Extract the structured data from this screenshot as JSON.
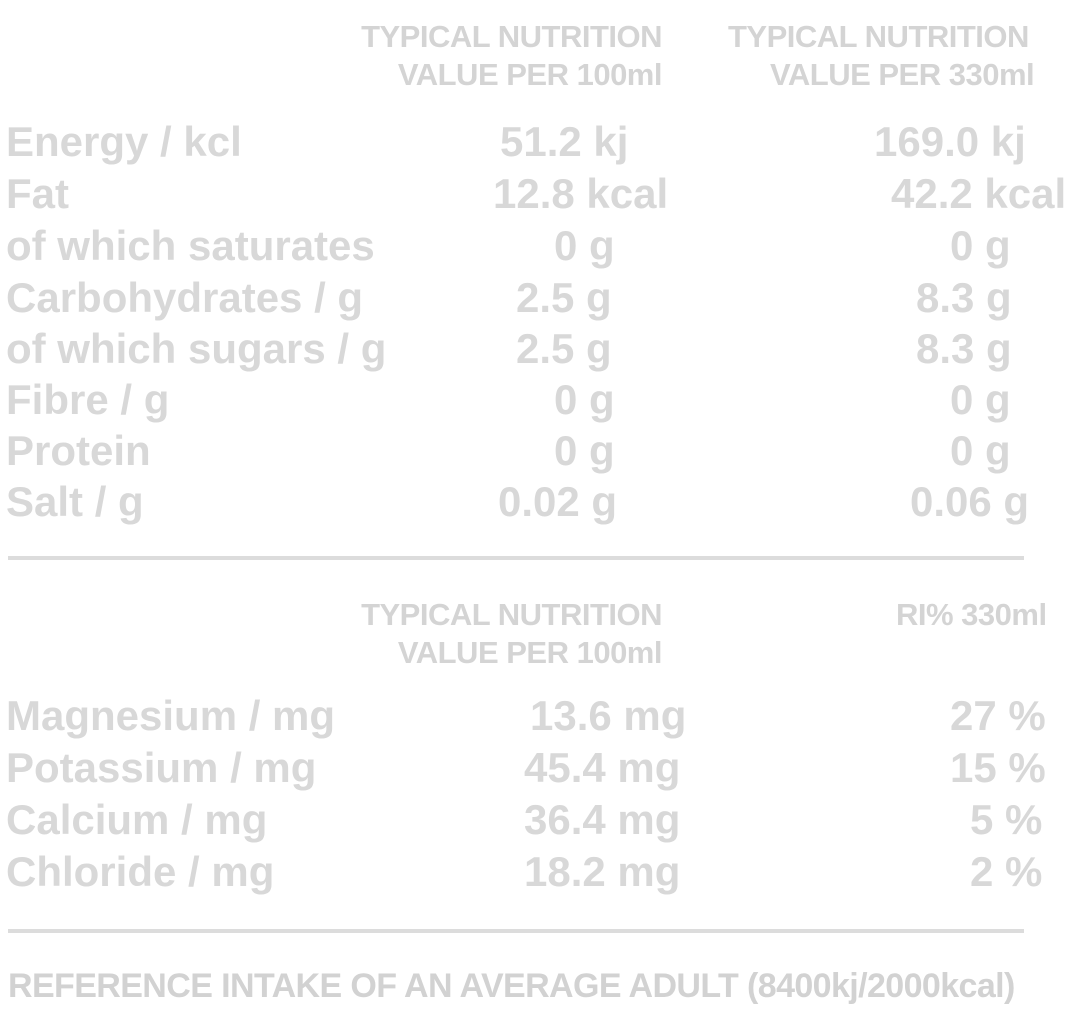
{
  "table1": {
    "header_col1_line1": "TYPICAL NUTRITION",
    "header_col1_line2": "VALUE PER 100ml",
    "header_col2_line1": "TYPICAL NUTRITION",
    "header_col2_line2": "VALUE PER 330ml",
    "rows": [
      {
        "label": "Energy / kcl",
        "per100": "51.2 kj",
        "per330": "169.0 kj"
      },
      {
        "label": "Fat",
        "per100": "12.8 kcal",
        "per330": "42.2 kcal"
      },
      {
        "label": "of  which saturates",
        "per100": "0 g",
        "per330": "0 g"
      },
      {
        "label": "Carbohydrates / g",
        "per100": "2.5 g",
        "per330": "8.3 g"
      },
      {
        "label": "of which sugars / g",
        "per100": "2.5 g",
        "per330": "8.3 g"
      },
      {
        "label": "Fibre  / g",
        "per100": "0 g",
        "per330": "0 g"
      },
      {
        "label": "Protein",
        "per100": "0 g",
        "per330": "0 g"
      },
      {
        "label": "Salt  / g",
        "per100": "0.02 g",
        "per330": "0.06 g"
      }
    ]
  },
  "table2": {
    "header_col1_line1": "TYPICAL NUTRITION",
    "header_col1_line2": "VALUE PER 100ml",
    "header_col2_line1": "RI% 330ml",
    "rows": [
      {
        "label": "Magnesium / mg",
        "per100": "13.6 mg",
        "ri": "27 %"
      },
      {
        "label": "Potassium  / mg",
        "per100": "45.4 mg",
        "ri": "15 %"
      },
      {
        "label": "Calcium / mg",
        "per100": "36.4 mg",
        "ri": "5 %"
      },
      {
        "label": "Chloride  / mg",
        "per100": "18.2 mg",
        "ri": "2 %"
      }
    ]
  },
  "footer": {
    "text": "REFERENCE INTAKE OF AN AVERAGE ADULT (8400kj/2000kcal)"
  }
}
